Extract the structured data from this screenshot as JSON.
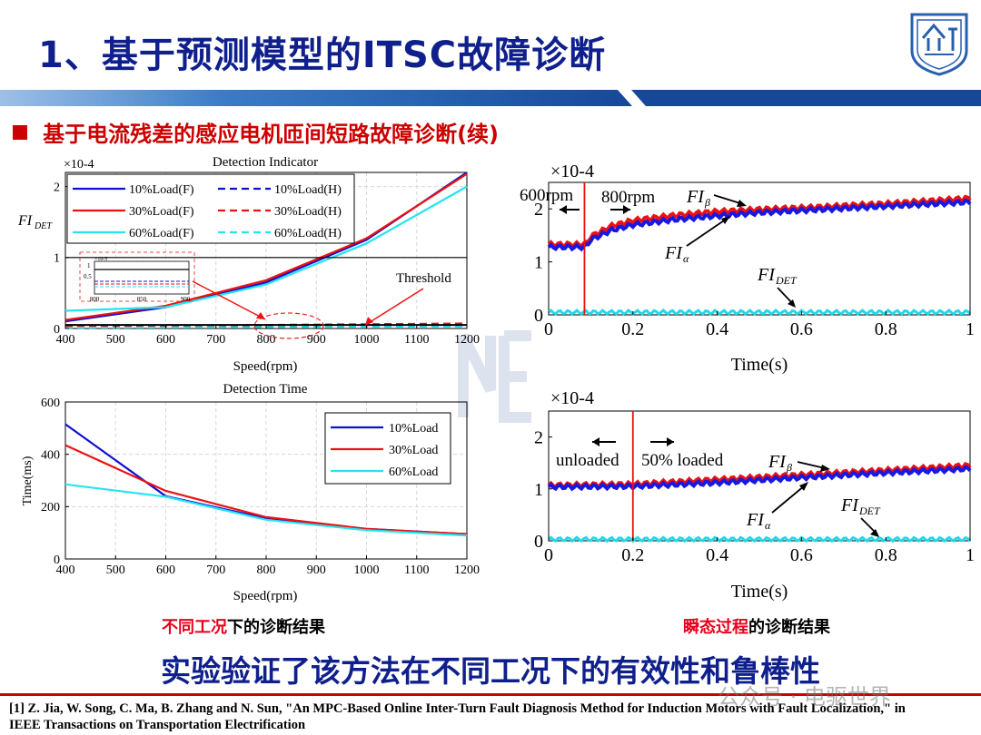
{
  "slide": {
    "title": "1、基于预测模型的ITSC故障诊断",
    "subtitle": "基于电流残差的感应电机匝间短路故障诊断(续)",
    "caption_left_red": "不同工况",
    "caption_left_black": "下的诊断结果",
    "caption_right_red": "瞬态过程",
    "caption_right_black": "的诊断结果",
    "conclusion": "实验验证了该方法在不同工况下的有效性和鲁棒性",
    "reference": "[1] Z. Jia, W. Song, C. Ma, B. Zhang and N. Sun, \"An MPC-Based Online Inter-Turn Fault Diagnosis Method for Induction Motors with Fault Localization,\" in IEEE Transactions on Transportation Electrification",
    "watermark": "公众号 · 电驱世界",
    "colors": {
      "title": "#0f1f8c",
      "accent_red": "#cc0000",
      "bar_blue": "#1f5fae"
    }
  },
  "chart_data": [
    {
      "id": "detection_indicator",
      "type": "line",
      "title": "Detection Indicator",
      "scale_label": "×10-4",
      "ylabel": "FI_DET",
      "xlabel": "Speed(rpm)",
      "xlim": [
        400,
        1200
      ],
      "ylim": [
        0,
        2.2
      ],
      "xticks": [
        400,
        500,
        600,
        700,
        800,
        900,
        1000,
        1100,
        1200
      ],
      "yticks": [
        0,
        1,
        2
      ],
      "x": [
        400,
        600,
        800,
        1000,
        1200
      ],
      "series": [
        {
          "name": "10%Load(F)",
          "color": "#1010d0",
          "dash": false,
          "values": [
            0.1,
            0.3,
            0.65,
            1.25,
            2.2
          ]
        },
        {
          "name": "10%Load(H)",
          "color": "#1010d0",
          "dash": true,
          "values": [
            0.02,
            0.03,
            0.04,
            0.05,
            0.06
          ]
        },
        {
          "name": "30%Load(F)",
          "color": "#ee1111",
          "dash": false,
          "values": [
            0.12,
            0.32,
            0.68,
            1.27,
            2.18
          ]
        },
        {
          "name": "30%Load(H)",
          "color": "#ee1111",
          "dash": true,
          "values": [
            0.03,
            0.04,
            0.05,
            0.06,
            0.07
          ]
        },
        {
          "name": "60%Load(F)",
          "color": "#22e5f0",
          "dash": false,
          "values": [
            0.25,
            0.3,
            0.62,
            1.2,
            2.0
          ]
        },
        {
          "name": "60%Load(H)",
          "color": "#22e5f0",
          "dash": true,
          "values": [
            0.01,
            0.015,
            0.02,
            0.025,
            0.03
          ]
        }
      ],
      "threshold": {
        "label": "Threshold",
        "value": 0.05
      },
      "inset": {
        "scale_label": "×10-5",
        "yticks": [
          0.5,
          1
        ],
        "xticks": [
          800,
          850,
          900
        ]
      }
    },
    {
      "id": "detection_time",
      "type": "line",
      "title": "Detection Time",
      "ylabel": "Time(ms)",
      "xlabel": "Speed(rpm)",
      "xlim": [
        400,
        1200
      ],
      "ylim": [
        0,
        600
      ],
      "xticks": [
        400,
        500,
        600,
        700,
        800,
        900,
        1000,
        1100,
        1200
      ],
      "yticks": [
        0,
        200,
        400,
        600
      ],
      "x": [
        400,
        600,
        800,
        1000,
        1200
      ],
      "series": [
        {
          "name": "10%Load",
          "color": "#1010d0",
          "values": [
            515,
            240,
            155,
            115,
            95
          ]
        },
        {
          "name": "30%Load",
          "color": "#ee1111",
          "values": [
            435,
            260,
            160,
            115,
            95
          ]
        },
        {
          "name": "60%Load",
          "color": "#22e5f0",
          "values": [
            285,
            238,
            150,
            110,
            90
          ]
        }
      ]
    },
    {
      "id": "transient_speed",
      "type": "line",
      "scale_label": "×10-4",
      "xlabel": "Time(s)",
      "xlim": [
        0,
        1
      ],
      "ylim": [
        0,
        2.5
      ],
      "xticks": [
        0,
        0.2,
        0.4,
        0.6,
        0.8,
        1
      ],
      "yticks": [
        0,
        1,
        2
      ],
      "switch_at": 0.085,
      "region_left": "600rpm",
      "region_right": "800rpm",
      "series": [
        {
          "name": "FIβ",
          "color": "#ee1111",
          "t": [
            0,
            0.08,
            0.09,
            0.1,
            0.15,
            0.2,
            0.3,
            0.4,
            0.5,
            0.6,
            0.8,
            1.0
          ],
          "values": [
            1.33,
            1.33,
            1.35,
            1.48,
            1.68,
            1.78,
            1.88,
            1.95,
            1.99,
            2.02,
            2.1,
            2.2
          ]
        },
        {
          "name": "FIα",
          "color": "#1818e0",
          "t": [
            0,
            0.08,
            0.09,
            0.1,
            0.15,
            0.2,
            0.3,
            0.4,
            0.5,
            0.6,
            0.8,
            1.0
          ],
          "values": [
            1.28,
            1.28,
            1.3,
            1.42,
            1.6,
            1.7,
            1.8,
            1.87,
            1.93,
            1.97,
            2.05,
            2.13
          ]
        },
        {
          "name": "FIDET",
          "color": "#22d8e8",
          "t": [
            0,
            1
          ],
          "values": [
            0.05,
            0.05
          ]
        }
      ],
      "labels": {
        "beta": "FI",
        "beta_sub": "β",
        "alpha": "FI",
        "alpha_sub": "α",
        "det": "FI",
        "det_sub": "DET"
      }
    },
    {
      "id": "transient_load",
      "type": "line",
      "scale_label": "×10-4",
      "xlabel": "Time(s)",
      "xlim": [
        0,
        1
      ],
      "ylim": [
        0,
        2.5
      ],
      "xticks": [
        0,
        0.2,
        0.4,
        0.6,
        0.8,
        1
      ],
      "yticks": [
        0,
        1,
        2
      ],
      "switch_at": 0.2,
      "region_left": "unloaded",
      "region_right": "50% loaded",
      "series": [
        {
          "name": "FIβ",
          "color": "#ee1111",
          "t": [
            0,
            0.2,
            0.4,
            0.6,
            0.8,
            1.0
          ],
          "values": [
            1.07,
            1.09,
            1.18,
            1.27,
            1.36,
            1.45
          ]
        },
        {
          "name": "FIα",
          "color": "#1818e0",
          "t": [
            0,
            0.2,
            0.4,
            0.6,
            0.8,
            1.0
          ],
          "values": [
            1.04,
            1.05,
            1.12,
            1.22,
            1.31,
            1.39
          ]
        },
        {
          "name": "FIDET",
          "color": "#22d8e8",
          "t": [
            0,
            1
          ],
          "values": [
            0.03,
            0.03
          ]
        }
      ],
      "labels": {
        "beta": "FI",
        "beta_sub": "β",
        "alpha": "FI",
        "alpha_sub": "α",
        "det": "FI",
        "det_sub": "DET"
      }
    }
  ]
}
